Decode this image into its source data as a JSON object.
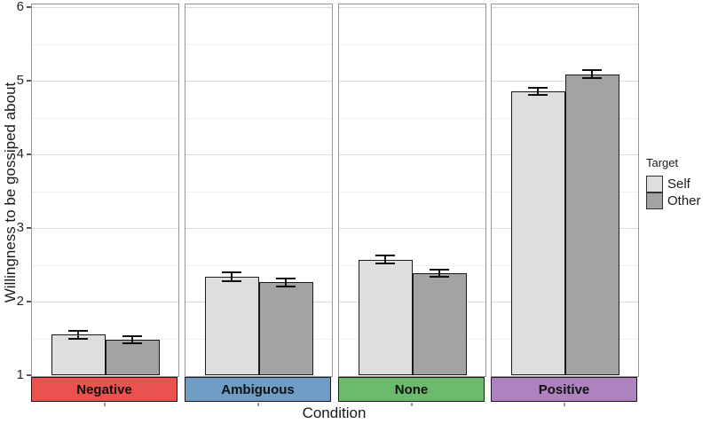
{
  "chart_data": {
    "type": "bar",
    "title": "",
    "xlabel": "Condition",
    "ylabel": "Willingness to be gossiped about",
    "ylim": [
      1,
      6
    ],
    "yticks": [
      1,
      2,
      3,
      4,
      5,
      6
    ],
    "grid": "horizontal major and minor gridlines, light gray on white panels",
    "legend_position": "right",
    "legend": {
      "title": "Target",
      "entries": [
        {
          "label": "Self",
          "color": "#dedede"
        },
        {
          "label": "Other",
          "color": "#a3a3a3"
        }
      ]
    },
    "series": [
      "Self",
      "Other"
    ],
    "facets": [
      {
        "label": "Negative",
        "strip_color": "#e8524f",
        "values": [
          1.55,
          1.48
        ],
        "errors": [
          0.07,
          0.06
        ]
      },
      {
        "label": "Ambiguous",
        "strip_color": "#6f9dc6",
        "values": [
          2.34,
          2.26
        ],
        "errors": [
          0.07,
          0.07
        ]
      },
      {
        "label": "None",
        "strip_color": "#6cbb6c",
        "values": [
          2.57,
          2.38
        ],
        "errors": [
          0.07,
          0.06
        ]
      },
      {
        "label": "Positive",
        "strip_color": "#ae82be",
        "values": [
          4.85,
          5.09
        ],
        "errors": [
          0.06,
          0.07
        ]
      }
    ],
    "bar_colors": {
      "Self": "#dedede",
      "Other": "#a3a3a3"
    },
    "error_bars": "approx ±1 SE, black caps"
  }
}
